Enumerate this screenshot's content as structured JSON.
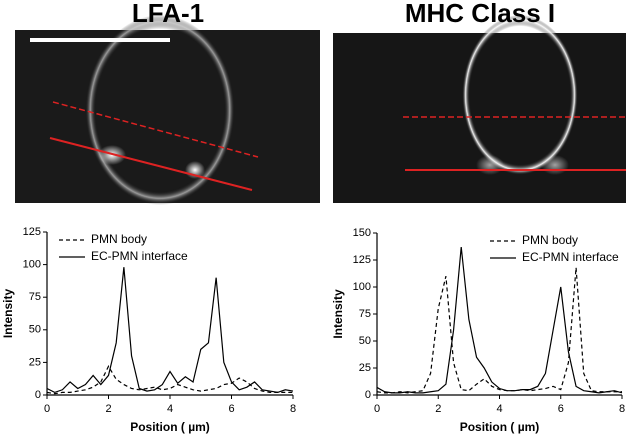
{
  "chart_data": [
    {
      "type": "line",
      "title": "LFA-1",
      "xlabel": "Position ( µm)",
      "ylabel": "Intensity",
      "x": [
        0,
        0.25,
        0.5,
        0.75,
        1,
        1.25,
        1.5,
        1.75,
        2,
        2.25,
        2.5,
        2.75,
        3,
        3.25,
        3.5,
        3.75,
        4,
        4.25,
        4.5,
        4.75,
        5,
        5.25,
        5.5,
        5.75,
        6,
        6.25,
        6.5,
        6.75,
        7,
        7.25,
        7.5,
        7.75,
        8
      ],
      "series": [
        {
          "name": "PMN body",
          "color": "#000000",
          "linestyle": "dashed",
          "values": [
            2,
            1,
            2,
            2,
            3,
            4,
            6,
            10,
            22,
            12,
            8,
            5,
            4,
            5,
            6,
            4,
            5,
            8,
            6,
            4,
            3,
            4,
            5,
            8,
            9,
            13,
            10,
            5,
            3,
            2,
            2,
            2,
            2
          ]
        },
        {
          "name": "EC-PMN interface",
          "color": "#000000",
          "linestyle": "solid",
          "values": [
            5,
            2,
            4,
            10,
            5,
            8,
            15,
            8,
            15,
            40,
            98,
            30,
            5,
            3,
            4,
            8,
            18,
            9,
            14,
            10,
            35,
            40,
            90,
            25,
            10,
            4,
            6,
            10,
            4,
            3,
            2,
            4,
            3
          ]
        }
      ],
      "xlim": [
        0,
        8
      ],
      "ylim": [
        0,
        125
      ],
      "xticks": [
        0,
        2,
        4,
        6,
        8
      ],
      "yticks": [
        0,
        25,
        50,
        75,
        100,
        125
      ],
      "legend": "upper left"
    },
    {
      "type": "line",
      "title": "MHC Class I",
      "xlabel": "Position ( µm)",
      "ylabel": "Intensity",
      "x": [
        0,
        0.25,
        0.5,
        0.75,
        1,
        1.25,
        1.5,
        1.75,
        2,
        2.25,
        2.5,
        2.75,
        3,
        3.25,
        3.5,
        3.75,
        4,
        4.25,
        4.5,
        4.75,
        5,
        5.25,
        5.5,
        5.75,
        6,
        6.25,
        6.5,
        6.75,
        7,
        7.25,
        7.5,
        7.75,
        8
      ],
      "series": [
        {
          "name": "PMN body",
          "color": "#000000",
          "linestyle": "dashed",
          "values": [
            3,
            2,
            2,
            3,
            2,
            3,
            4,
            20,
            80,
            110,
            30,
            5,
            4,
            10,
            15,
            8,
            5,
            4,
            4,
            5,
            4,
            5,
            6,
            8,
            5,
            30,
            118,
            20,
            4,
            3,
            3,
            3,
            3
          ]
        },
        {
          "name": "EC-PMN interface",
          "color": "#000000",
          "linestyle": "solid",
          "values": [
            7,
            3,
            2,
            2,
            3,
            2,
            2,
            3,
            4,
            10,
            60,
            137,
            70,
            35,
            25,
            12,
            6,
            4,
            4,
            5,
            5,
            8,
            20,
            60,
            100,
            40,
            8,
            4,
            3,
            2,
            3,
            4,
            2
          ]
        }
      ],
      "xlim": [
        0,
        8
      ],
      "ylim": [
        0,
        150
      ],
      "xticks": [
        0,
        2,
        4,
        6,
        8
      ],
      "yticks": [
        0,
        25,
        50,
        75,
        100,
        125,
        150
      ],
      "legend": "upper right"
    }
  ]
}
